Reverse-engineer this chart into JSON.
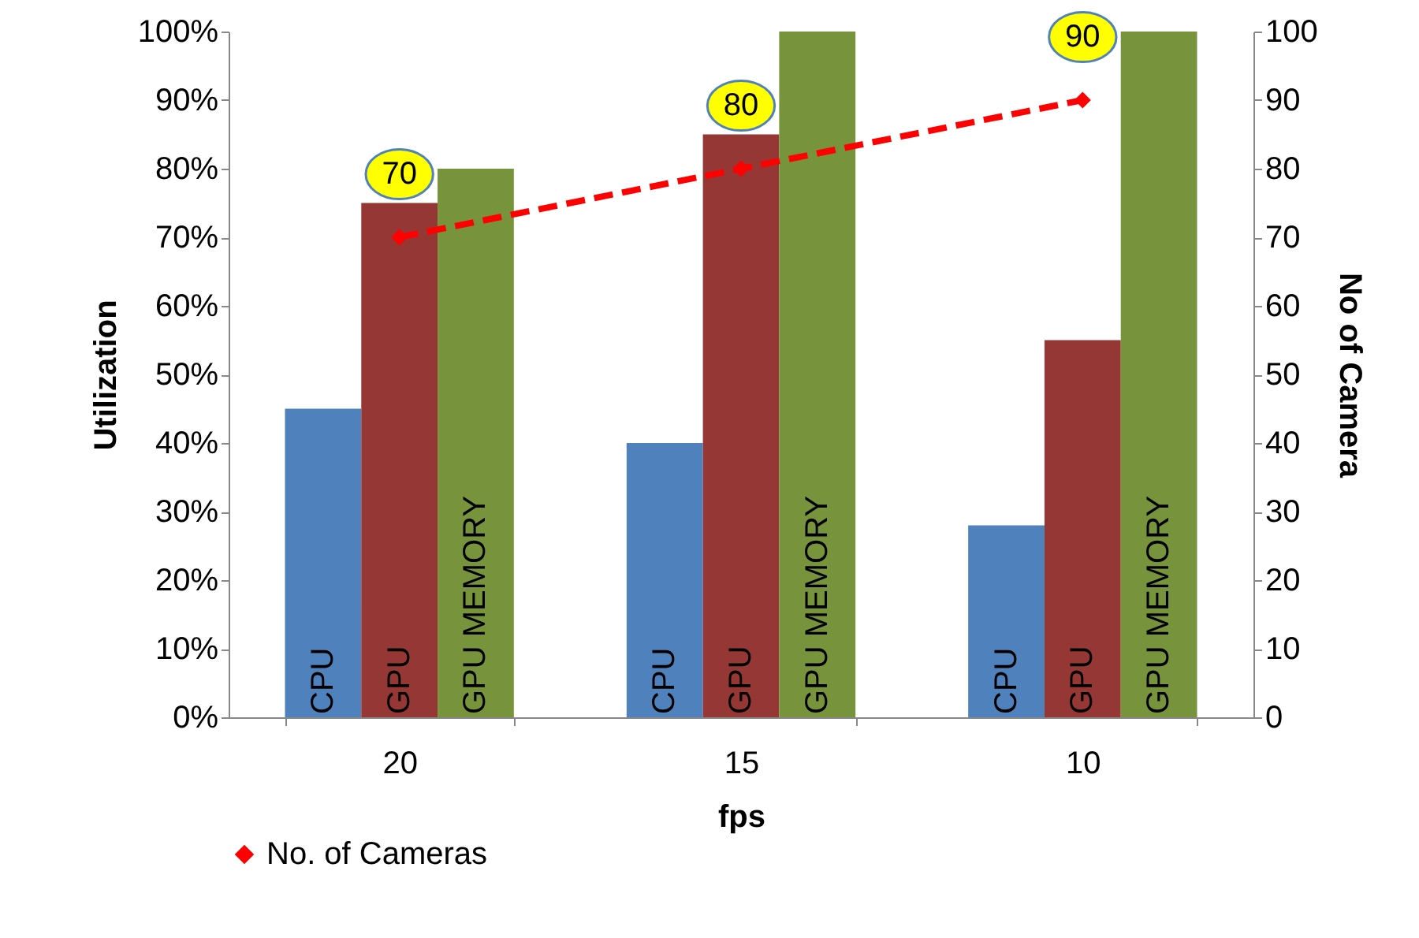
{
  "chart_data": {
    "type": "bar",
    "xlabel": "fps",
    "ylabel": "Utilization",
    "y2label": "No of Camera",
    "categories": [
      "20",
      "15",
      "10"
    ],
    "series": [
      {
        "name": "CPU",
        "color": "#4f81bd",
        "values": [
          45,
          40,
          28
        ]
      },
      {
        "name": "GPU",
        "color": "#953735",
        "values": [
          75,
          85,
          55
        ]
      },
      {
        "name": "GPU MEMORY",
        "color": "#77933c",
        "values": [
          80,
          100,
          100
        ]
      },
      {
        "name": "No. of Cameras",
        "type": "line",
        "axis": "y2",
        "color": "#ff0000",
        "marker": "diamond",
        "line_style": "dashed",
        "values": [
          70,
          80,
          90
        ],
        "value_labels": [
          "70",
          "80",
          "90"
        ]
      }
    ],
    "ylim": [
      0,
      100
    ],
    "yticks": [
      {
        "value": 0,
        "label": "0%"
      },
      {
        "value": 10,
        "label": "10%"
      },
      {
        "value": 20,
        "label": "20%"
      },
      {
        "value": 30,
        "label": "30%"
      },
      {
        "value": 40,
        "label": "40%"
      },
      {
        "value": 50,
        "label": "50%"
      },
      {
        "value": 60,
        "label": "60%"
      },
      {
        "value": 70,
        "label": "70%"
      },
      {
        "value": 80,
        "label": "80%"
      },
      {
        "value": 90,
        "label": "90%"
      },
      {
        "value": 100,
        "label": "100%"
      }
    ],
    "y2lim": [
      0,
      100
    ],
    "y2ticks": [
      0,
      10,
      20,
      30,
      40,
      50,
      60,
      70,
      80,
      90,
      100
    ],
    "legend": "bottom",
    "grid": false
  }
}
